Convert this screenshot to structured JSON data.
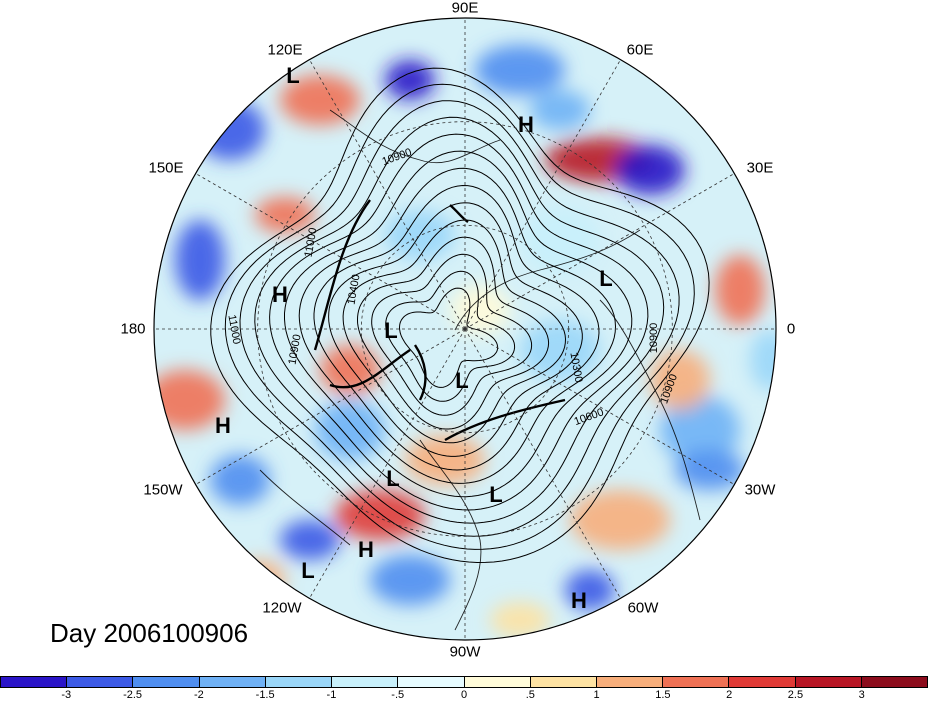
{
  "title": "Day 2006100906",
  "longitude_labels": {
    "top": "90E",
    "top_left": "120E",
    "top_right": "60E",
    "upper_left": "150E",
    "upper_right": "30E",
    "left": "180",
    "right": "0",
    "lower_left": "150W",
    "lower_right": "30W",
    "bottom_left": "120W",
    "bottom_right": "60W",
    "bottom": "90W"
  },
  "contour_labels": [
    "10900",
    "11000",
    "11000",
    "10400",
    "10900",
    "10300",
    "10600",
    "10900",
    "10900"
  ],
  "pressure_centers": [
    "L",
    "H",
    "L",
    "H",
    "L",
    "L",
    "L",
    "L",
    "H",
    "H",
    "L",
    "H"
  ],
  "colorbar": {
    "labels": [
      "-3",
      "-2.5",
      "-2",
      "-1.5",
      "-1",
      "-.5",
      "0",
      ".5",
      "1",
      "1.5",
      "2",
      "2.5",
      "3"
    ],
    "colors": [
      "#2a14c8",
      "#3c5ae6",
      "#4f8ef0",
      "#6fb1f5",
      "#9ad6f8",
      "#c8f0fb",
      "#e6fbff",
      "#fffbd9",
      "#fde2a3",
      "#f7ae7b",
      "#ef7155",
      "#e03a36",
      "#b81625",
      "#8c0c1c"
    ]
  }
}
